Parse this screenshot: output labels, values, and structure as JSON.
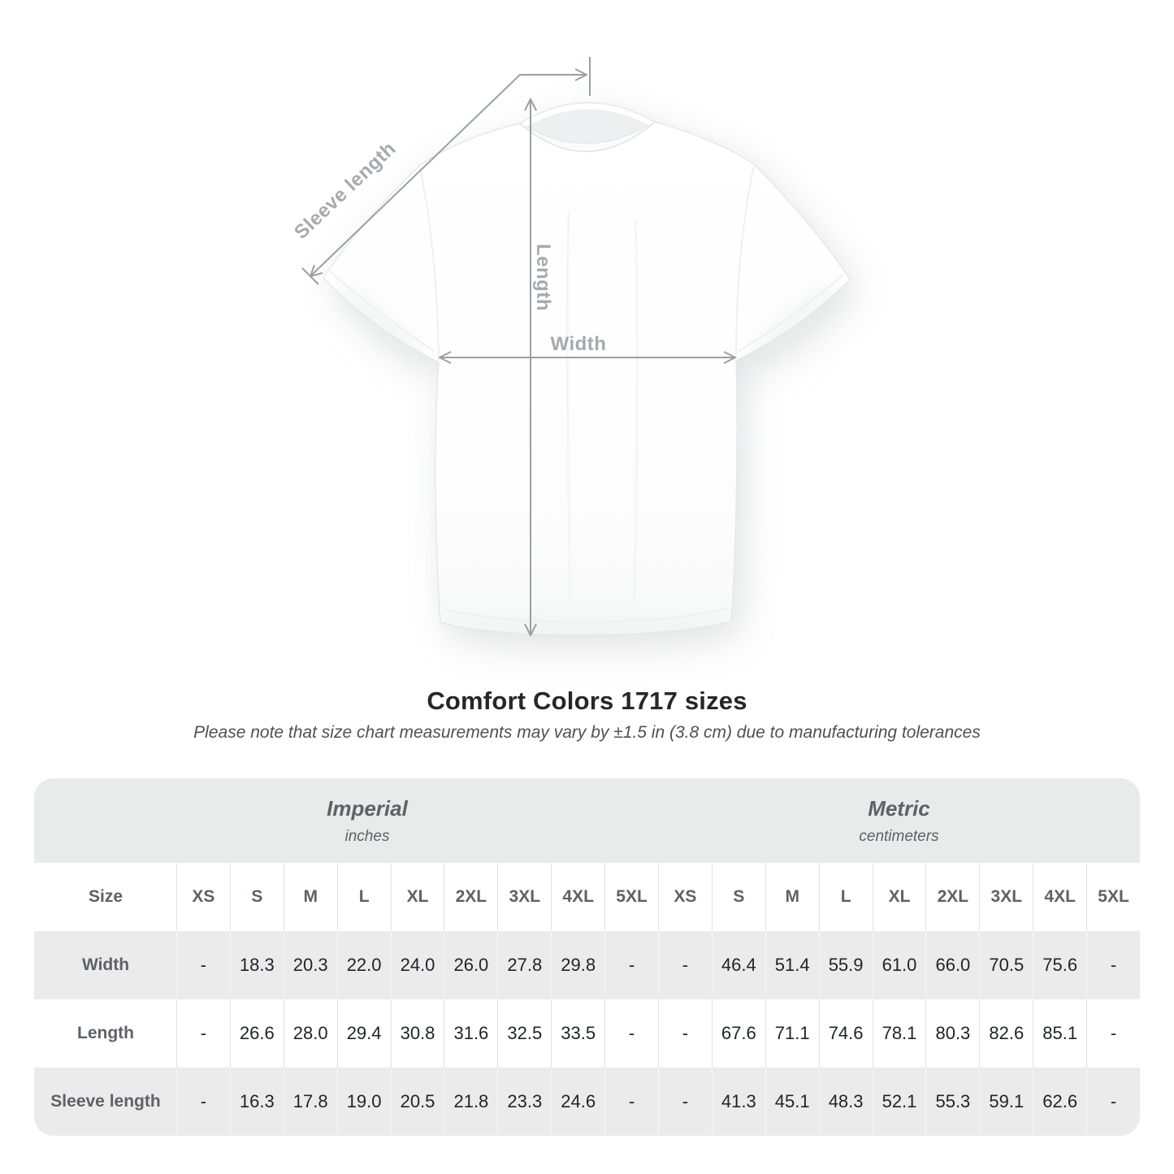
{
  "chart_data": {
    "type": "table",
    "title": "Comfort Colors 1717 sizes",
    "subtitle": "Please note that size chart measurements may vary by ±1.5 in (3.8 cm) due to manufacturing tolerances",
    "sections": [
      {
        "name": "Imperial",
        "unit": "inches"
      },
      {
        "name": "Metric",
        "unit": "centimeters"
      }
    ],
    "size_label": "Size",
    "sizes": [
      "XS",
      "S",
      "M",
      "L",
      "XL",
      "2XL",
      "3XL",
      "4XL",
      "5XL"
    ],
    "rows": [
      {
        "label": "Width",
        "imperial": [
          "-",
          "18.3",
          "20.3",
          "22.0",
          "24.0",
          "26.0",
          "27.8",
          "29.8",
          "-"
        ],
        "metric": [
          "-",
          "46.4",
          "51.4",
          "55.9",
          "61.0",
          "66.0",
          "70.5",
          "75.6",
          "-"
        ]
      },
      {
        "label": "Length",
        "imperial": [
          "-",
          "26.6",
          "28.0",
          "29.4",
          "30.8",
          "31.6",
          "32.5",
          "33.5",
          "-"
        ],
        "metric": [
          "-",
          "67.6",
          "71.1",
          "74.6",
          "78.1",
          "80.3",
          "82.6",
          "85.1",
          "-"
        ]
      },
      {
        "label": "Sleeve length",
        "imperial": [
          "-",
          "16.3",
          "17.8",
          "19.0",
          "20.5",
          "21.8",
          "23.3",
          "24.6",
          "-"
        ],
        "metric": [
          "-",
          "41.3",
          "45.1",
          "48.3",
          "52.1",
          "55.3",
          "59.1",
          "62.6",
          "-"
        ]
      }
    ]
  },
  "diagram": {
    "labels": {
      "sleeve": "Sleeve length",
      "length": "Length",
      "width": "Width"
    }
  },
  "colors": {
    "measure_line": "#9aa0a5",
    "measure_label": "#a6aaae",
    "table_band": "#e9eaea",
    "table_row_alt": "#ebebec",
    "heading_text": "#24272a",
    "table_header_text": "#5d6267",
    "value_text": "#222528"
  }
}
